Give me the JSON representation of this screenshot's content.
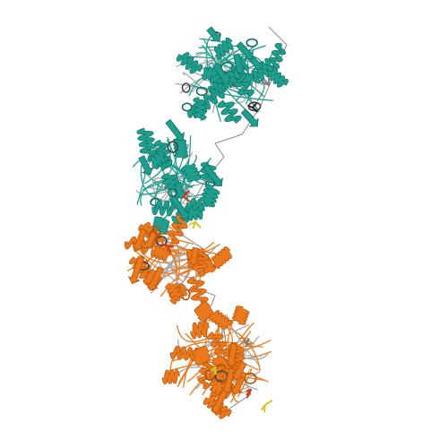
{
  "image": {
    "subject": "protein-ribbon-structure",
    "background": "#ffffff",
    "chains": [
      {
        "name": "chain-a",
        "color": "#1f9e8e",
        "dark": "#0f6f63",
        "light": "#6fd1c2"
      },
      {
        "name": "chain-b",
        "color": "#e9791c",
        "dark": "#b3520d",
        "light": "#f4b07a"
      }
    ],
    "ligand_colors": {
      "red": "#d23a20",
      "yellow": "#d8c32a",
      "gray": "#7d7d7d",
      "dark": "#222222"
    }
  }
}
